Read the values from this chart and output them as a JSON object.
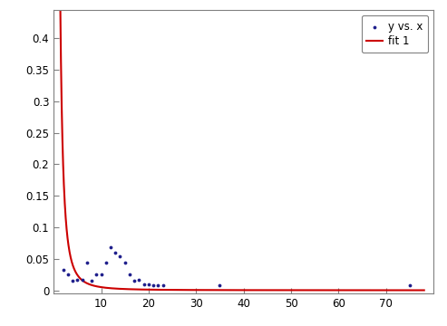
{
  "scatter_x": [
    2,
    3,
    4,
    5,
    6,
    7,
    8,
    9,
    10,
    11,
    12,
    13,
    14,
    15,
    16,
    17,
    18,
    19,
    20,
    21,
    22,
    23,
    35,
    75
  ],
  "scatter_y": [
    0.032,
    0.025,
    0.015,
    0.016,
    0.016,
    0.044,
    0.015,
    0.025,
    0.025,
    0.044,
    0.068,
    0.06,
    0.054,
    0.044,
    0.025,
    0.015,
    0.016,
    0.01,
    0.01,
    0.008,
    0.008,
    0.008,
    0.008,
    0.008
  ],
  "fit_x_start": 1.0,
  "fit_x_end": 78.0,
  "fit_a": 0.98,
  "fit_b": 2.3,
  "scatter_color": "#1f1f8c",
  "fit_color": "#cc0000",
  "xlim": [
    0,
    80
  ],
  "ylim": [
    -0.005,
    0.445
  ],
  "xticks": [
    10,
    20,
    30,
    40,
    50,
    60,
    70
  ],
  "yticks": [
    0,
    0.05,
    0.1,
    0.15,
    0.2,
    0.25,
    0.3,
    0.35,
    0.4
  ],
  "legend_scatter_label": "y vs. x",
  "legend_fit_label": "fit 1",
  "axes_bgcolor": "#ffffff",
  "figure_bgcolor": "#ffffff",
  "spine_color": "#808080",
  "tick_color": "#000000"
}
